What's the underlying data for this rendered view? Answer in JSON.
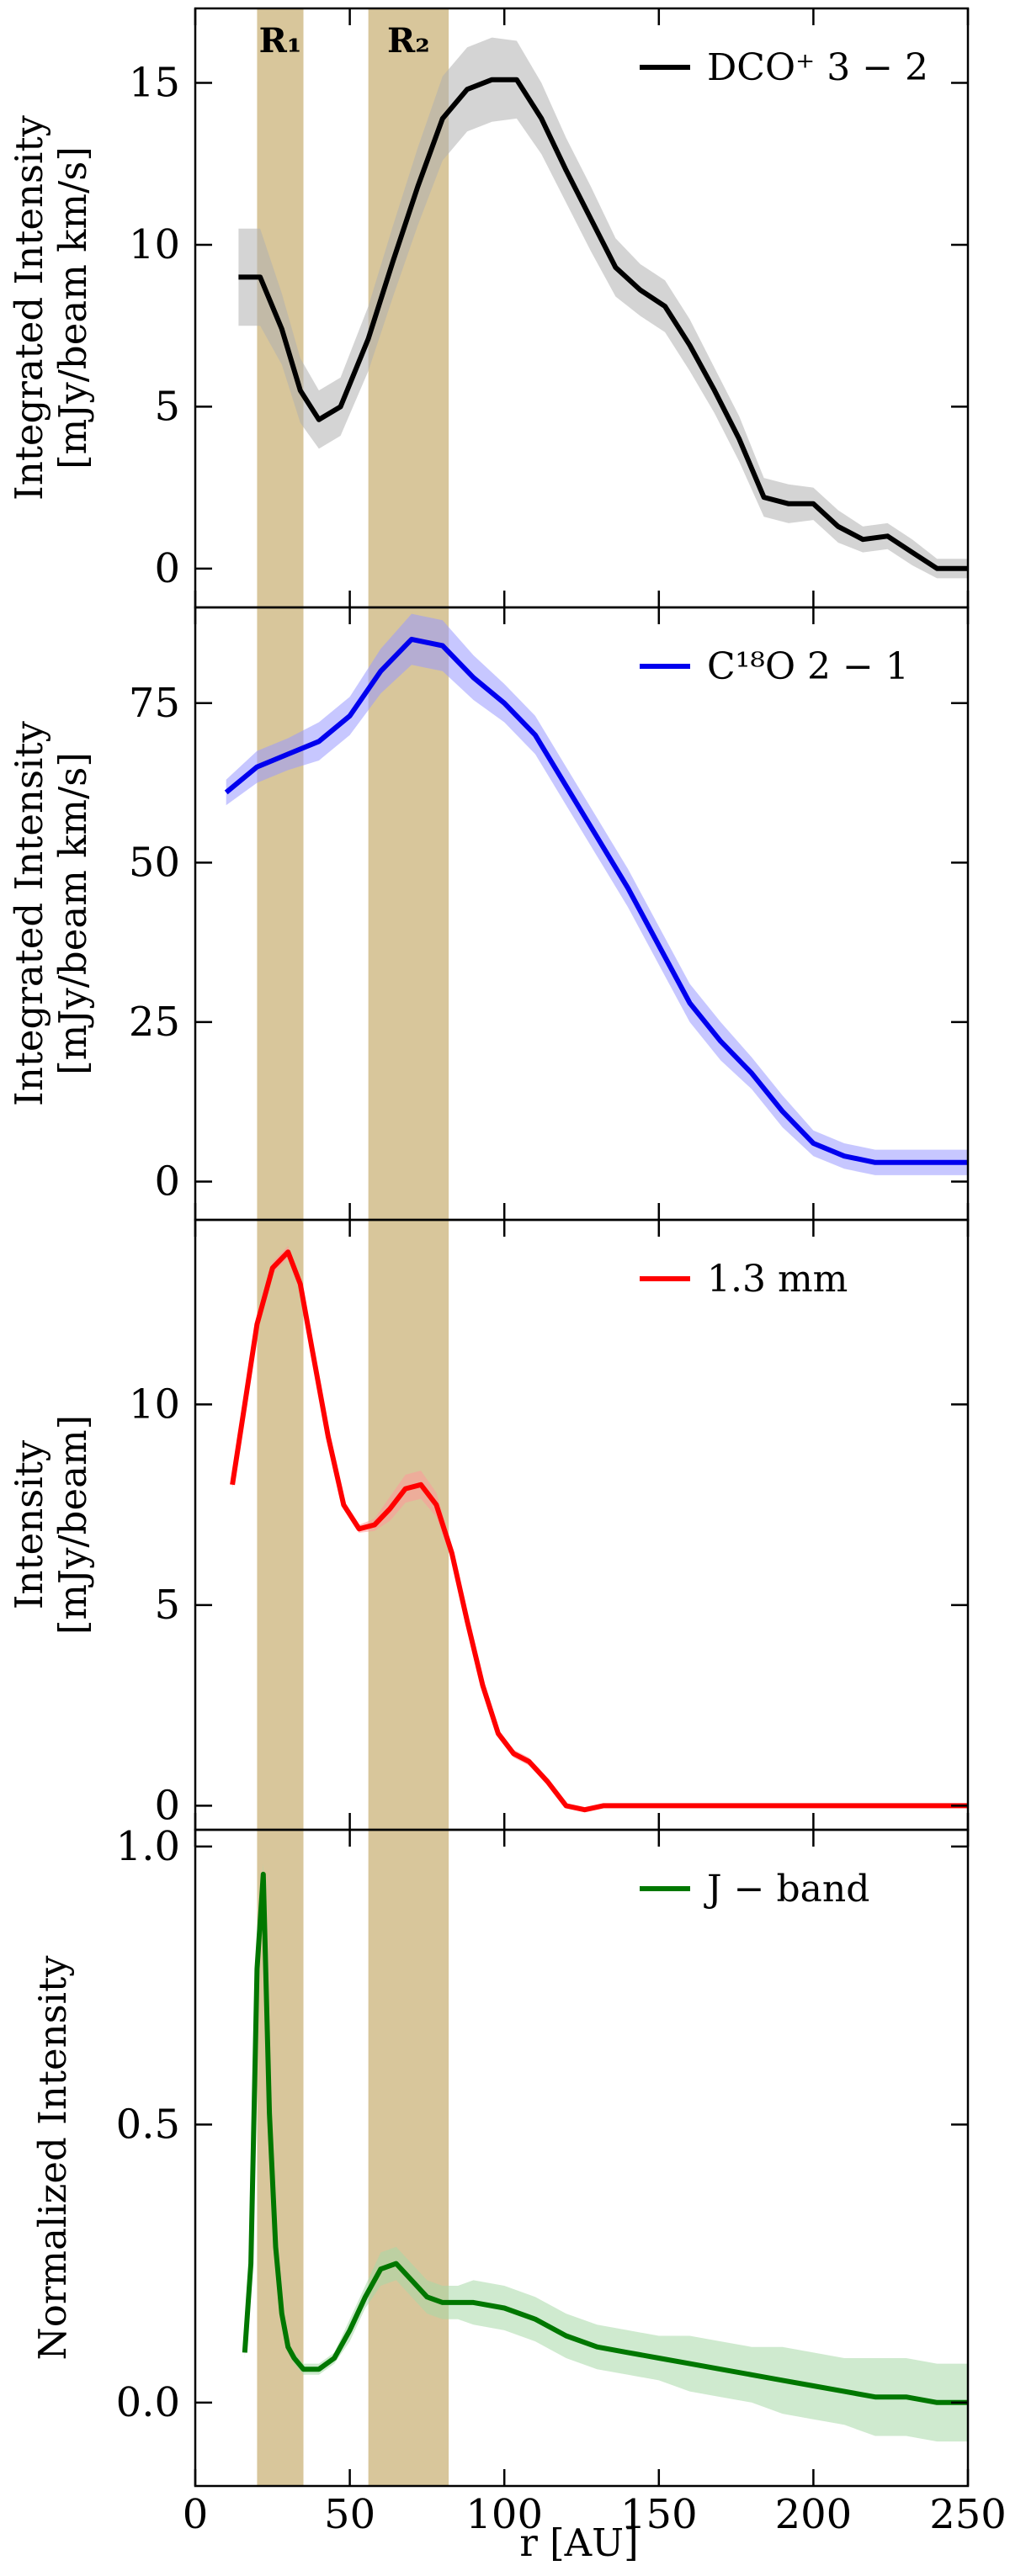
{
  "chart_data": {
    "type": "line",
    "layout": "4 stacked panels sharing x axis",
    "xlabel": "r [AU]",
    "xlim": [
      0,
      250
    ],
    "x_ticks": [
      0,
      50,
      100,
      150,
      200,
      250
    ],
    "shaded_regions": [
      {
        "label": "R₁",
        "x_range": [
          20,
          35
        ],
        "color": "#d4c090"
      },
      {
        "label": "R₂",
        "x_range": [
          56,
          82
        ],
        "color": "#d4c090"
      }
    ],
    "legend_placement": "top-right",
    "panels": [
      {
        "id": "dco",
        "ylabel": [
          "Integrated Intensity",
          "[mJy/beam km/s]"
        ],
        "ylim": [
          -1.2,
          17.3
        ],
        "y_ticks": [
          0,
          5,
          10,
          15
        ],
        "legend": "DCO⁺ 3 − 2",
        "series": [
          {
            "name": "DCO⁺ 3 − 2",
            "color": "#000000",
            "band_color": "#b0b0b0",
            "x": [
              14,
              21,
              28,
              34,
              40,
              47,
              56,
              64,
              72,
              80,
              88,
              96,
              104,
              112,
              120,
              128,
              136,
              144,
              152,
              160,
              168,
              176,
              184,
              192,
              200,
              208,
              216,
              224,
              232,
              240,
              250
            ],
            "y": [
              9.0,
              9.0,
              7.4,
              5.5,
              4.6,
              5.0,
              7.1,
              9.5,
              11.8,
              13.9,
              14.8,
              15.1,
              15.1,
              13.9,
              12.3,
              10.8,
              9.3,
              8.6,
              8.1,
              6.9,
              5.5,
              4.0,
              2.2,
              2.0,
              2.0,
              1.3,
              0.9,
              1.0,
              0.5,
              0.0,
              0.0
            ],
            "band": [
              1.5,
              1.5,
              1.1,
              1.0,
              0.9,
              0.9,
              1.0,
              1.1,
              1.2,
              1.3,
              1.3,
              1.3,
              1.2,
              1.1,
              1.0,
              1.0,
              0.9,
              0.8,
              0.8,
              0.8,
              0.7,
              0.7,
              0.6,
              0.6,
              0.5,
              0.5,
              0.4,
              0.4,
              0.4,
              0.3,
              0.3
            ]
          }
        ]
      },
      {
        "id": "c18o",
        "ylabel": [
          "Integrated Intensity",
          "[mJy/beam km/s]"
        ],
        "ylim": [
          -6,
          90
        ],
        "y_ticks": [
          0,
          25,
          50,
          75
        ],
        "legend": "C¹⁸O 2 − 1",
        "series": [
          {
            "name": "C¹⁸O 2 − 1",
            "color": "#0000ee",
            "band_color": "#9999ff",
            "x": [
              10,
              20,
              30,
              40,
              50,
              60,
              70,
              80,
              90,
              100,
              110,
              120,
              130,
              140,
              150,
              160,
              170,
              180,
              190,
              200,
              210,
              220,
              230,
              240,
              250
            ],
            "y": [
              61,
              65,
              67,
              69,
              73,
              80,
              85,
              84,
              79,
              75,
              70,
              62,
              54,
              46,
              37,
              28,
              22,
              17,
              11,
              6,
              4,
              3,
              3,
              3,
              3
            ],
            "band": [
              2,
              2.5,
              2.5,
              3,
              3,
              3.5,
              4,
              4,
              3.5,
              3,
              3,
              3,
              3,
              3,
              3,
              3,
              3,
              2.5,
              2.5,
              2,
              2,
              2,
              2,
              2,
              2
            ]
          }
        ]
      },
      {
        "id": "continuum",
        "ylabel": [
          "Intensity",
          "[mJy/beam]"
        ],
        "ylim": [
          -0.6,
          14.6
        ],
        "y_ticks": [
          0,
          5,
          10
        ],
        "legend": "1.3 mm",
        "series": [
          {
            "name": "1.3 mm",
            "color": "#ff0000",
            "band_color": "#ff9999",
            "x": [
              12,
              16,
              20,
              25,
              30,
              34,
              38,
              43,
              48,
              53,
              58,
              63,
              68,
              73,
              78,
              83,
              88,
              93,
              98,
              103,
              108,
              114,
              120,
              126,
              132,
              140,
              150,
              175,
              200,
              225,
              250
            ],
            "y": [
              8.0,
              10.0,
              12.0,
              13.4,
              13.8,
              13.0,
              11.3,
              9.2,
              7.5,
              6.9,
              7.0,
              7.4,
              7.9,
              8.0,
              7.5,
              6.3,
              4.6,
              3.0,
              1.8,
              1.3,
              1.1,
              0.6,
              0.0,
              -0.1,
              0.0,
              0.0,
              0.0,
              0.0,
              0.0,
              0.0,
              0.0
            ],
            "band": [
              0.1,
              0.1,
              0.1,
              0.15,
              0.15,
              0.15,
              0.1,
              0.1,
              0.1,
              0.1,
              0.15,
              0.3,
              0.35,
              0.35,
              0.3,
              0.2,
              0.1,
              0.1,
              0.1,
              0.1,
              0.1,
              0.05,
              0.05,
              0.05,
              0.05,
              0.05,
              0.05,
              0.05,
              0.05,
              0.05,
              0.05
            ]
          }
        ]
      },
      {
        "id": "jband",
        "ylabel": [
          "Normalized Intensity"
        ],
        "ylim": [
          -0.15,
          1.03
        ],
        "y_ticks": [
          0.0,
          0.5,
          1.0
        ],
        "y_tick_labels": [
          "0.0",
          "0.5",
          "1.0"
        ],
        "legend": "J − band",
        "series": [
          {
            "name": "J − band",
            "color": "#007700",
            "band_color": "#a8d8a8",
            "x": [
              16,
              18,
              20,
              22,
              24,
              26,
              28,
              30,
              32,
              35,
              40,
              45,
              50,
              55,
              60,
              65,
              70,
              75,
              80,
              85,
              90,
              100,
              110,
              120,
              130,
              140,
              150,
              160,
              170,
              180,
              190,
              200,
              210,
              220,
              230,
              240,
              250
            ],
            "y": [
              0.09,
              0.25,
              0.78,
              0.95,
              0.52,
              0.28,
              0.16,
              0.1,
              0.08,
              0.06,
              0.06,
              0.08,
              0.13,
              0.19,
              0.24,
              0.25,
              0.22,
              0.19,
              0.18,
              0.18,
              0.18,
              0.17,
              0.15,
              0.12,
              0.1,
              0.09,
              0.08,
              0.07,
              0.06,
              0.05,
              0.04,
              0.03,
              0.02,
              0.01,
              0.01,
              0.0,
              0.0
            ],
            "band": [
              0.01,
              0.01,
              0.02,
              0.02,
              0.02,
              0.01,
              0.01,
              0.01,
              0.01,
              0.01,
              0.01,
              0.01,
              0.02,
              0.02,
              0.03,
              0.03,
              0.03,
              0.03,
              0.03,
              0.03,
              0.04,
              0.04,
              0.04,
              0.04,
              0.04,
              0.04,
              0.04,
              0.05,
              0.05,
              0.05,
              0.06,
              0.06,
              0.06,
              0.07,
              0.07,
              0.07,
              0.07
            ]
          }
        ]
      }
    ]
  }
}
